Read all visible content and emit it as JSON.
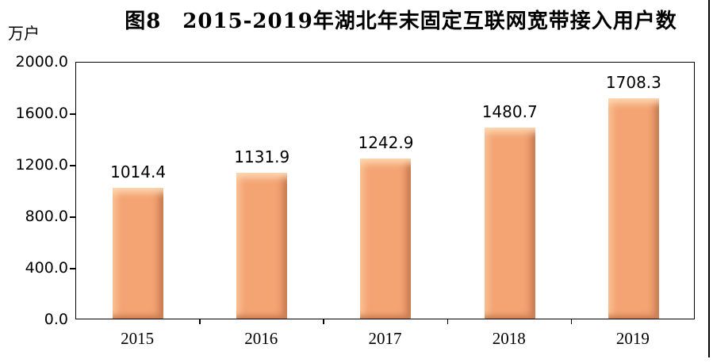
{
  "chart_data": {
    "type": "bar",
    "title": "图8　2015-2019年湖北年末固定互联网宽带接入用户数",
    "unit": "万户",
    "categories": [
      "2015",
      "2016",
      "2017",
      "2018",
      "2019"
    ],
    "values": [
      1014.4,
      1131.9,
      1242.9,
      1480.7,
      1708.3
    ],
    "data_labels": [
      "1014.4",
      "1131.9",
      "1242.9",
      "1480.7",
      "1708.3"
    ],
    "xlabel": "",
    "ylabel": "万户",
    "ylim": [
      0,
      2000
    ],
    "ytick_interval": 400,
    "ytick_labels": [
      "2000.0",
      "1600.0",
      "1200.0",
      "800.0",
      "400.0",
      "0.0"
    ],
    "grid": false,
    "legend": "none",
    "bar_color": "#f4a473",
    "bar_bevel_light": "#fdd9b4",
    "bar_bevel_dark": "#c97f55",
    "axis_color": "#000000",
    "text_color": "#000000"
  }
}
